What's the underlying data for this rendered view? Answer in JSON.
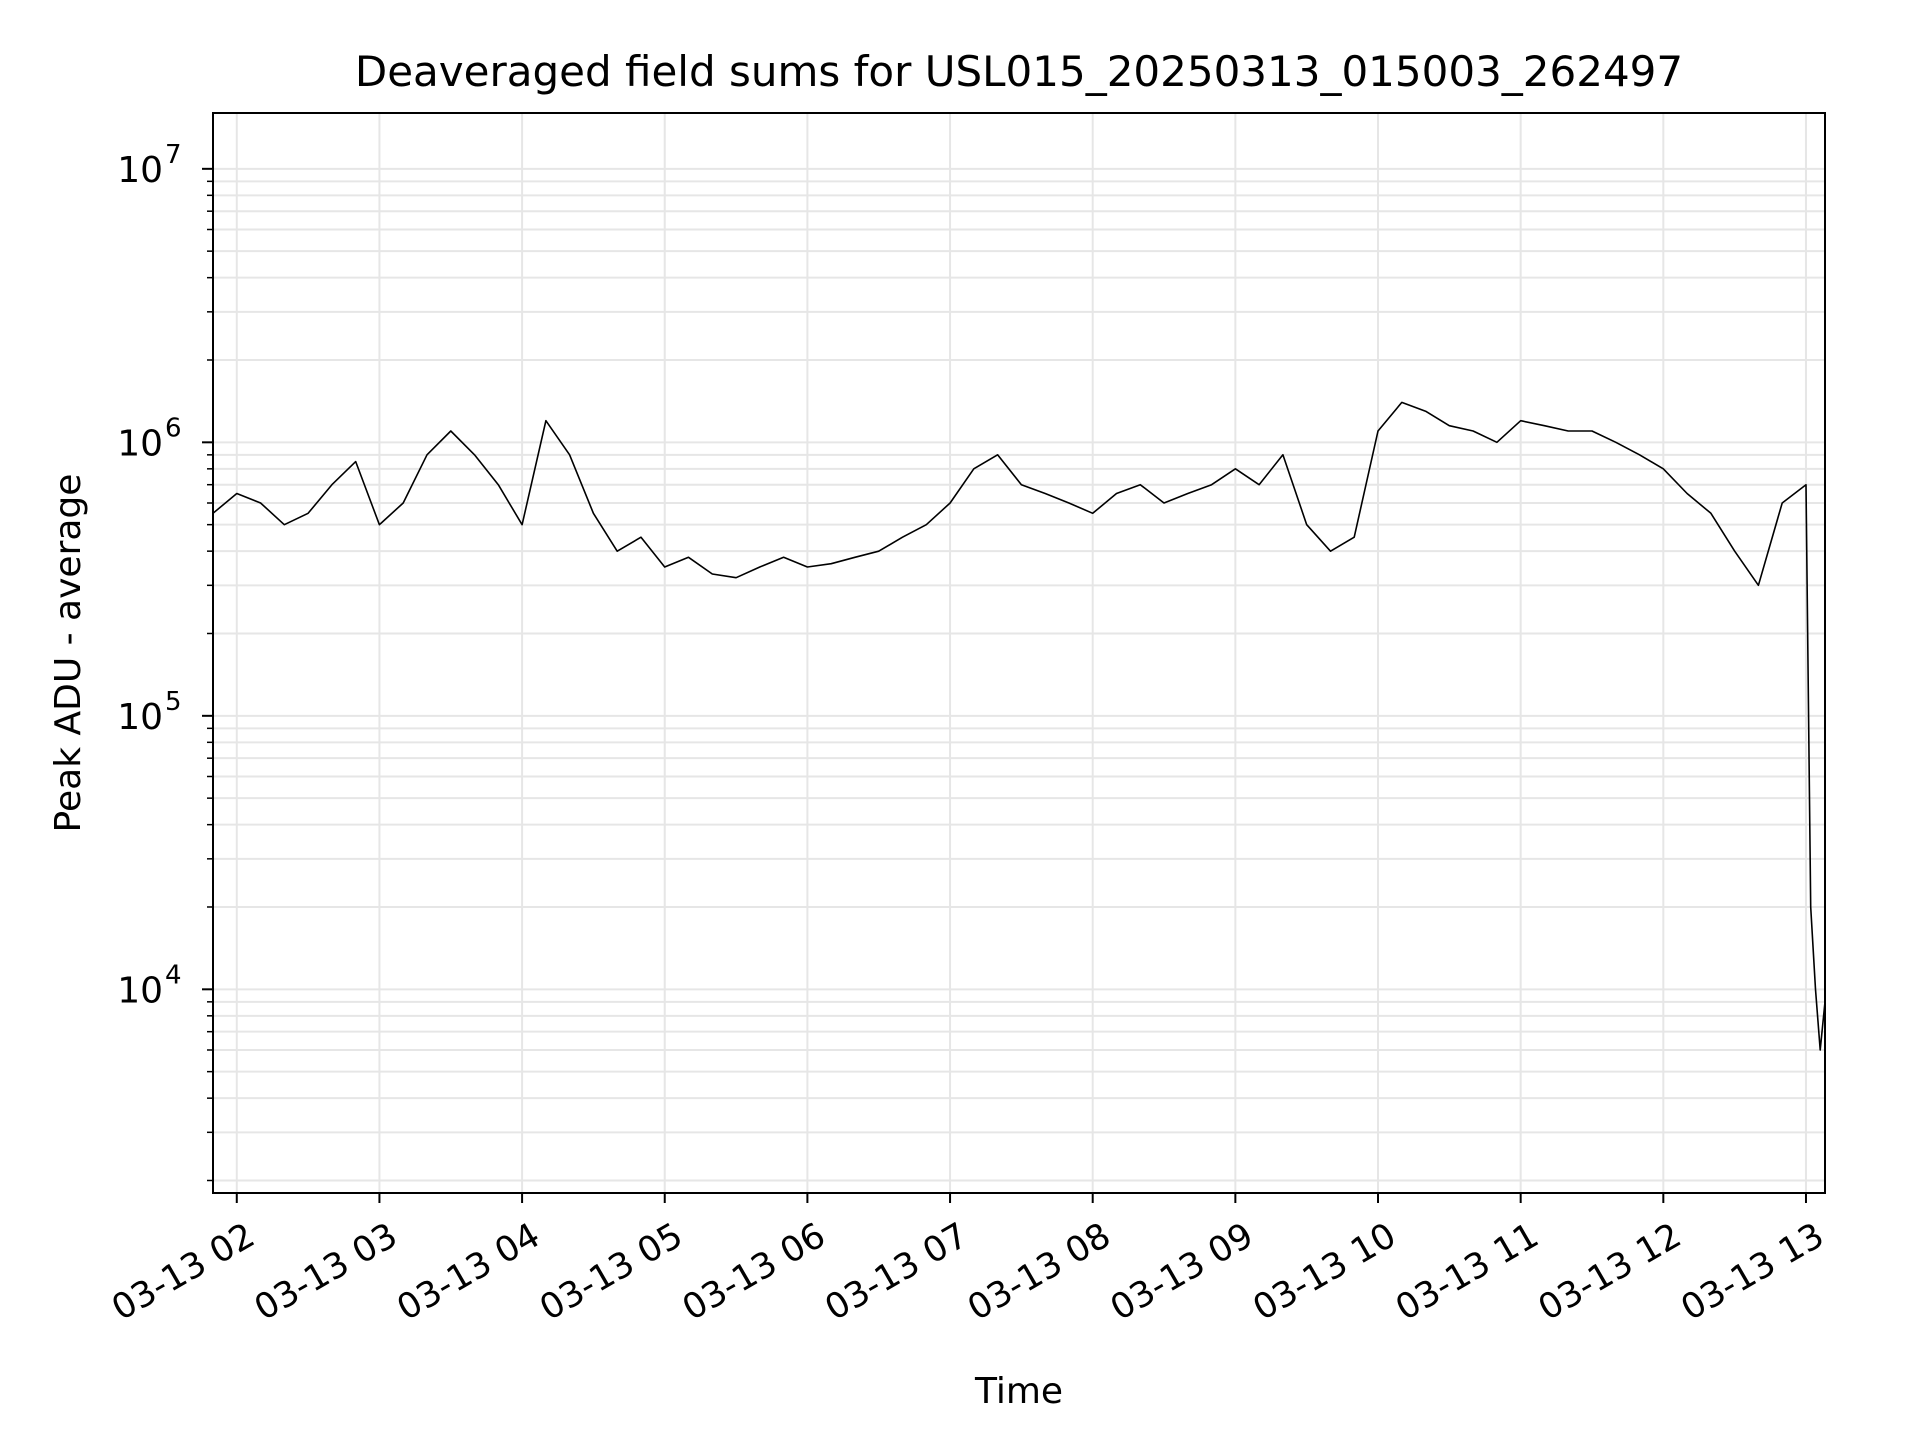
{
  "chart_data": {
    "type": "line",
    "title": "Deaveraged field sums for USL015_20250313_015003_262497",
    "xlabel": "Time",
    "ylabel": "Peak ADU - average",
    "yscale": "log",
    "ylim": [
      1800,
      16000000
    ],
    "xlim": [
      "2025-03-13 01:50",
      "2025-03-13 13:08"
    ],
    "x_ticks": [
      {
        "label": "03-13 02",
        "time": "2025-03-13 02:00"
      },
      {
        "label": "03-13 03",
        "time": "2025-03-13 03:00"
      },
      {
        "label": "03-13 04",
        "time": "2025-03-13 04:00"
      },
      {
        "label": "03-13 05",
        "time": "2025-03-13 05:00"
      },
      {
        "label": "03-13 06",
        "time": "2025-03-13 06:00"
      },
      {
        "label": "03-13 07",
        "time": "2025-03-13 07:00"
      },
      {
        "label": "03-13 08",
        "time": "2025-03-13 08:00"
      },
      {
        "label": "03-13 09",
        "time": "2025-03-13 09:00"
      },
      {
        "label": "03-13 10",
        "time": "2025-03-13 10:00"
      },
      {
        "label": "03-13 11",
        "time": "2025-03-13 11:00"
      },
      {
        "label": "03-13 12",
        "time": "2025-03-13 12:00"
      },
      {
        "label": "03-13 13",
        "time": "2025-03-13 13:00"
      }
    ],
    "y_ticks": [
      {
        "base": "10",
        "exp": "4",
        "value": 10000
      },
      {
        "base": "10",
        "exp": "5",
        "value": 100000
      },
      {
        "base": "10",
        "exp": "6",
        "value": 1000000
      },
      {
        "base": "10",
        "exp": "7",
        "value": 10000000
      }
    ],
    "grid": true,
    "line_color": "#000000",
    "grid_color": "#e6e6e6",
    "series": [
      {
        "x": [
          "2025-03-13 01:50",
          "2025-03-13 02:00",
          "2025-03-13 02:10",
          "2025-03-13 02:20",
          "2025-03-13 02:30",
          "2025-03-13 02:40",
          "2025-03-13 02:50",
          "2025-03-13 03:00",
          "2025-03-13 03:10",
          "2025-03-13 03:20",
          "2025-03-13 03:30",
          "2025-03-13 03:40",
          "2025-03-13 03:50",
          "2025-03-13 04:00",
          "2025-03-13 04:10",
          "2025-03-13 04:20",
          "2025-03-13 04:30",
          "2025-03-13 04:40",
          "2025-03-13 04:50",
          "2025-03-13 05:00",
          "2025-03-13 05:10",
          "2025-03-13 05:20",
          "2025-03-13 05:30",
          "2025-03-13 05:40",
          "2025-03-13 05:50",
          "2025-03-13 06:00",
          "2025-03-13 06:10",
          "2025-03-13 06:20",
          "2025-03-13 06:30",
          "2025-03-13 06:40",
          "2025-03-13 06:50",
          "2025-03-13 07:00",
          "2025-03-13 07:10",
          "2025-03-13 07:20",
          "2025-03-13 07:30",
          "2025-03-13 07:40",
          "2025-03-13 07:50",
          "2025-03-13 08:00",
          "2025-03-13 08:10",
          "2025-03-13 08:20",
          "2025-03-13 08:30",
          "2025-03-13 08:40",
          "2025-03-13 08:50",
          "2025-03-13 09:00",
          "2025-03-13 09:10",
          "2025-03-13 09:20",
          "2025-03-13 09:30",
          "2025-03-13 09:40",
          "2025-03-13 09:50",
          "2025-03-13 10:00",
          "2025-03-13 10:10",
          "2025-03-13 10:20",
          "2025-03-13 10:30",
          "2025-03-13 10:40",
          "2025-03-13 10:50",
          "2025-03-13 11:00",
          "2025-03-13 11:10",
          "2025-03-13 11:20",
          "2025-03-13 11:30",
          "2025-03-13 11:40",
          "2025-03-13 11:50",
          "2025-03-13 12:00",
          "2025-03-13 12:10",
          "2025-03-13 12:20",
          "2025-03-13 12:30",
          "2025-03-13 12:40",
          "2025-03-13 12:50",
          "2025-03-13 13:00",
          "2025-03-13 13:02",
          "2025-03-13 13:04",
          "2025-03-13 13:06",
          "2025-03-13 13:08"
        ],
        "y": [
          550000,
          650000,
          600000,
          500000,
          550000,
          700000,
          850000,
          500000,
          600000,
          900000,
          1100000,
          900000,
          700000,
          500000,
          1200000,
          900000,
          550000,
          400000,
          450000,
          350000,
          380000,
          330000,
          320000,
          350000,
          380000,
          350000,
          360000,
          380000,
          400000,
          450000,
          500000,
          600000,
          800000,
          900000,
          700000,
          650000,
          600000,
          550000,
          650000,
          700000,
          600000,
          650000,
          700000,
          800000,
          700000,
          900000,
          500000,
          400000,
          450000,
          1100000,
          1400000,
          1300000,
          1150000,
          1100000,
          1000000,
          1200000,
          1150000,
          1100000,
          1100000,
          1000000,
          900000,
          800000,
          650000,
          550000,
          400000,
          300000,
          600000,
          700000,
          20000,
          10000,
          6000,
          9000
        ]
      }
    ]
  }
}
